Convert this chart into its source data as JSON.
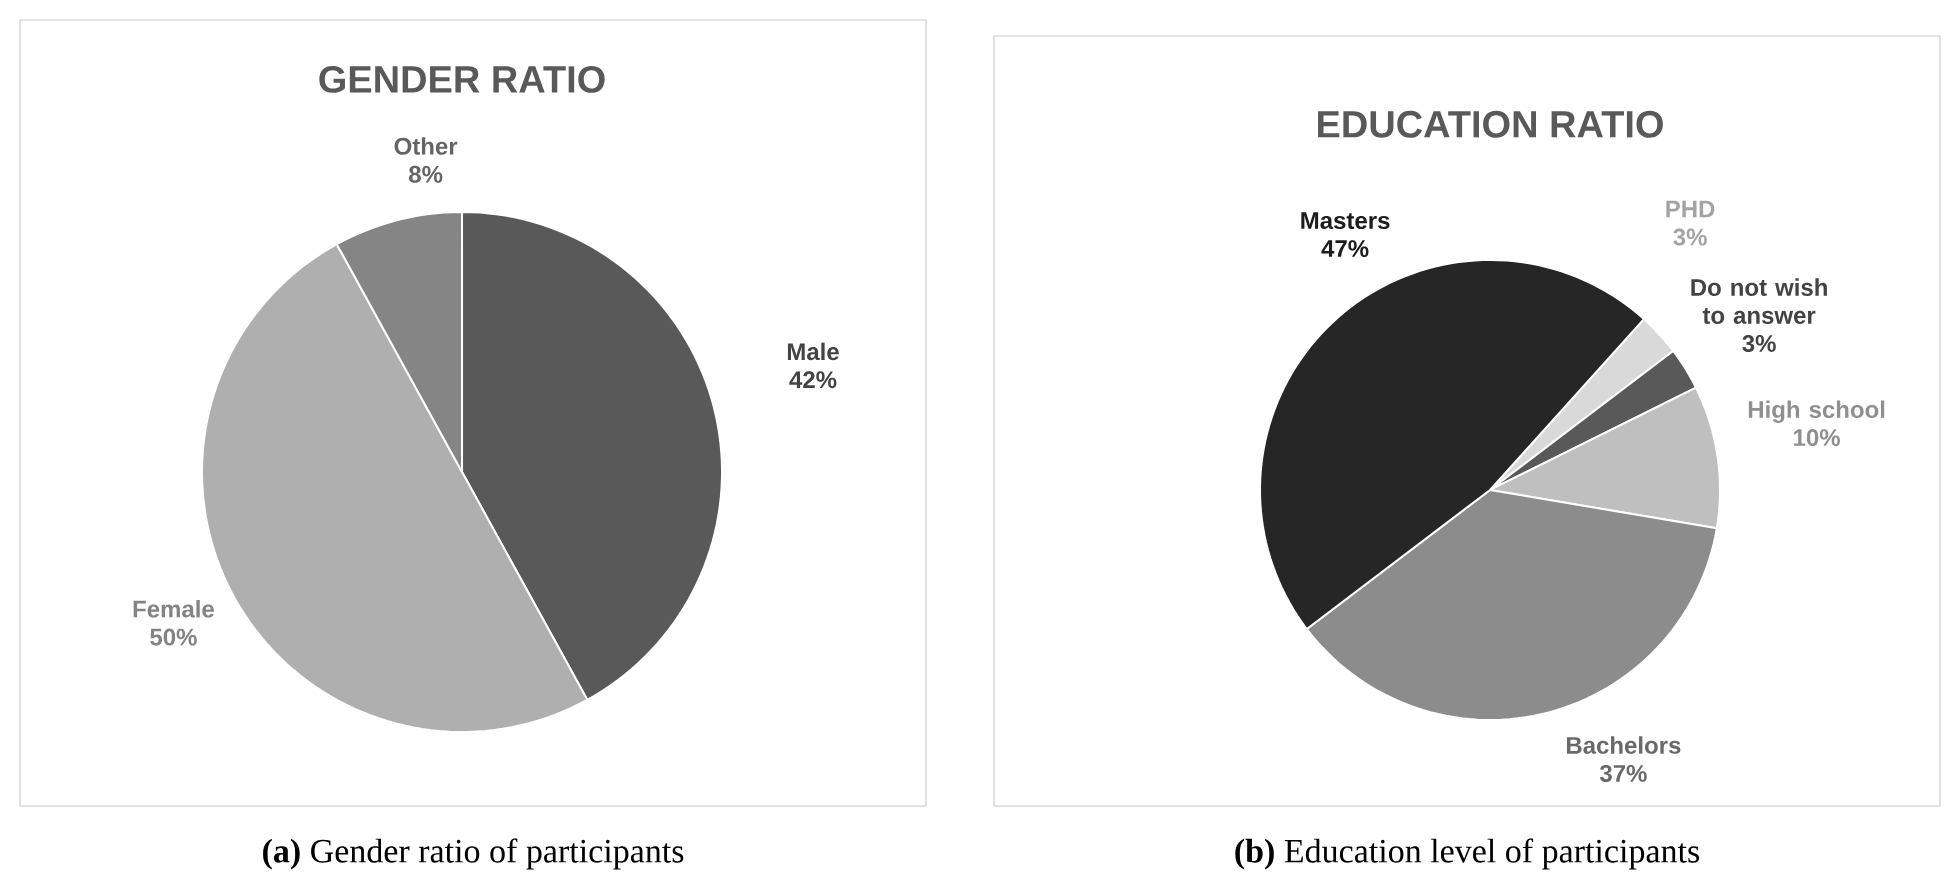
{
  "chart_data": [
    {
      "type": "pie",
      "title": "GENDER RATIO",
      "categories": [
        "Male",
        "Female",
        "Other"
      ],
      "values": [
        42,
        50,
        8
      ],
      "colors": [
        "#595959",
        "#afafaf",
        "#858585"
      ],
      "value_labels": [
        "42%",
        "50%",
        "8%"
      ],
      "annotations": [
        "**(a)** Gender ratio of participants"
      ]
    },
    {
      "type": "pie",
      "title": "EDUCATION RATIO",
      "categories": [
        "PHD",
        "Do not wish to answer",
        "High school",
        "Bachelors",
        "Masters"
      ],
      "values": [
        3,
        3,
        10,
        37,
        47
      ],
      "colors": [
        "#d9d9d9",
        "#595959",
        "#bfbfbf",
        "#8c8c8c",
        "#262626"
      ],
      "value_labels": [
        "3%",
        "3%",
        "10%",
        "37%",
        "47%"
      ],
      "annotations": [
        "**(b)** Education level of participants"
      ]
    }
  ]
}
